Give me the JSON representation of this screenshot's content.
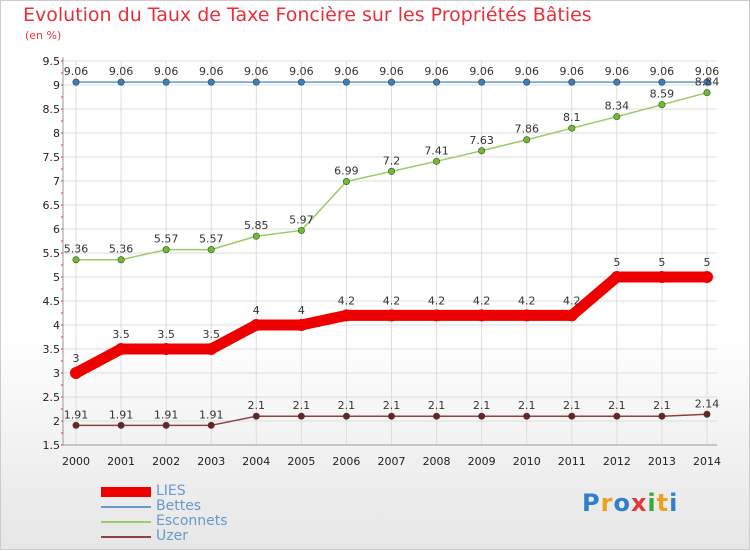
{
  "title": "Evolution du Taux de Taxe Foncière sur les Propriétés Bâties",
  "unit_label": "(en %)",
  "logo": {
    "text": "Proxiti",
    "letter_colors": [
      "#2f7fcf",
      "#f0a020",
      "#2f7fcf",
      "#e03a3a",
      "#3aa83a",
      "#f0a020",
      "#2f7fcf"
    ]
  },
  "chart_data": {
    "type": "line",
    "title": "Evolution du Taux de Taxe Foncière sur les Propriétés Bâties",
    "ylabel": "(en %)",
    "xlabel": "",
    "ylim": [
      1.5,
      9.5
    ],
    "yticks": [
      "1.5",
      "2",
      "2.5",
      "3",
      "3.5",
      "4",
      "4.5",
      "5",
      "5.5",
      "6",
      "6.5",
      "7",
      "7.5",
      "8",
      "8.5",
      "9",
      "9.5"
    ],
    "categories": [
      "2000",
      "2001",
      "2002",
      "2003",
      "2004",
      "2005",
      "2006",
      "2007",
      "2008",
      "2009",
      "2010",
      "2011",
      "2012",
      "2013",
      "2014"
    ],
    "grid": true,
    "legend_position": "bottom-left",
    "series": [
      {
        "name": "LIES",
        "color": "#ee0000",
        "emphasis": "thick",
        "values": [
          3,
          3.5,
          3.5,
          3.5,
          4,
          4,
          4.2,
          4.2,
          4.2,
          4.2,
          4.2,
          4.2,
          5,
          5,
          5
        ],
        "labels": [
          "3",
          "3.5",
          "3.5",
          "3.5",
          "4",
          "4",
          "4.2",
          "4.2",
          "4.2",
          "4.2",
          "4.2",
          "4.2",
          "5",
          "5",
          "5"
        ]
      },
      {
        "name": "Bettes",
        "color": "#6699cc",
        "dot_color": "#3a7fc0",
        "values": [
          9.06,
          9.06,
          9.06,
          9.06,
          9.06,
          9.06,
          9.06,
          9.06,
          9.06,
          9.06,
          9.06,
          9.06,
          9.06,
          9.06,
          9.06
        ],
        "labels": [
          "9.06",
          "9.06",
          "9.06",
          "9.06",
          "9.06",
          "9.06",
          "9.06",
          "9.06",
          "9.06",
          "9.06",
          "9.06",
          "9.06",
          "9.06",
          "9.06",
          "9.06"
        ]
      },
      {
        "name": "Esconnets",
        "color": "#99cc66",
        "dot_color": "#6cbf2a",
        "values": [
          5.36,
          5.36,
          5.57,
          5.57,
          5.85,
          5.97,
          6.99,
          7.2,
          7.41,
          7.63,
          7.86,
          8.1,
          8.34,
          8.59,
          8.84
        ],
        "labels": [
          "5.36",
          "5.36",
          "5.57",
          "5.57",
          "5.85",
          "5.97",
          "6.99",
          "7.2",
          "7.41",
          "7.63",
          "7.86",
          "8.1",
          "8.34",
          "8.59",
          "8.84"
        ]
      },
      {
        "name": "Uzer",
        "color": "#884444",
        "dot_color": "#6a2222",
        "values": [
          1.91,
          1.91,
          1.91,
          1.91,
          2.1,
          2.1,
          2.1,
          2.1,
          2.1,
          2.1,
          2.1,
          2.1,
          2.1,
          2.1,
          2.14
        ],
        "labels": [
          "1.91",
          "1.91",
          "1.91",
          "1.91",
          "2.1",
          "2.1",
          "2.1",
          "2.1",
          "2.1",
          "2.1",
          "2.1",
          "2.1",
          "2.1",
          "2.1",
          "2.14"
        ]
      }
    ]
  }
}
